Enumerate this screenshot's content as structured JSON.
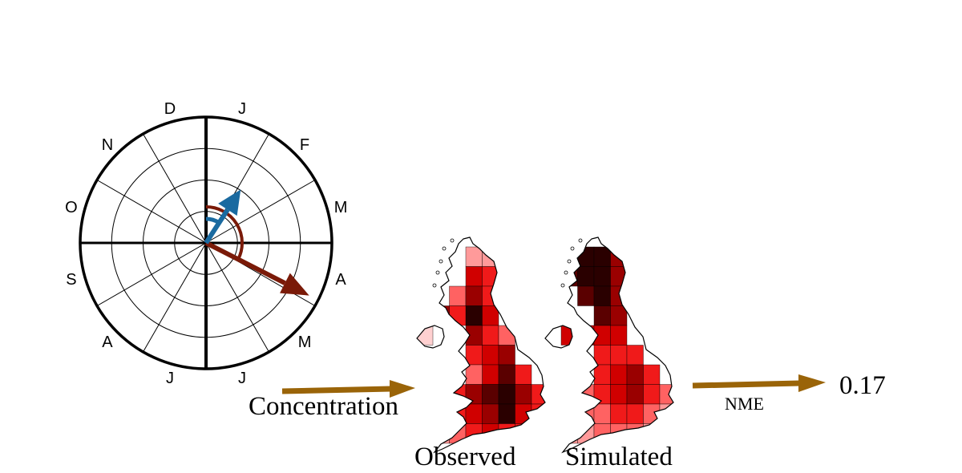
{
  "polar": {
    "months": [
      "J",
      "F",
      "M",
      "A",
      "M",
      "J",
      "J",
      "A",
      "S",
      "O",
      "N",
      "D"
    ],
    "colors": {
      "observed_arrow": "#1a6aa0",
      "simulated_arrow": "#7a1a08",
      "ring_line": "#000000"
    },
    "observed_vector": {
      "phase_month": 1.1,
      "magnitude": 0.55
    },
    "simulated_vector": {
      "phase_month": 3.9,
      "magnitude": 1.0
    }
  },
  "flow": {
    "concentration_label": "Concentration",
    "observed_label": "Observed",
    "simulated_label": "Simulated",
    "metric_label": "NME",
    "metric_value": "0.17",
    "arrow_color": "#9a6408"
  },
  "maps": {
    "palette": [
      "#ffd0d0",
      "#ff9a9a",
      "#ff6262",
      "#f01a1a",
      "#d00000",
      "#9a0000",
      "#5a0000",
      "#2a0000"
    ],
    "observed_cells": [
      [
        2,
        0,
        1
      ],
      [
        3,
        0,
        1
      ],
      [
        2,
        1,
        4
      ],
      [
        3,
        1,
        3
      ],
      [
        4,
        1,
        0
      ],
      [
        1,
        2,
        2
      ],
      [
        2,
        2,
        5
      ],
      [
        3,
        2,
        3
      ],
      [
        2,
        3,
        7
      ],
      [
        3,
        3,
        4
      ],
      [
        0,
        3,
        5
      ],
      [
        1,
        3,
        3
      ],
      [
        2,
        4,
        5
      ],
      [
        3,
        4,
        3
      ],
      [
        4,
        4,
        2
      ],
      [
        -1,
        4,
        0
      ],
      [
        3,
        5,
        4
      ],
      [
        4,
        5,
        5
      ],
      [
        2,
        5,
        3
      ],
      [
        3,
        6,
        4
      ],
      [
        4,
        6,
        6
      ],
      [
        5,
        6,
        3
      ],
      [
        2,
        6,
        2
      ],
      [
        1,
        7,
        3
      ],
      [
        2,
        7,
        5
      ],
      [
        3,
        7,
        6
      ],
      [
        4,
        7,
        7
      ],
      [
        5,
        7,
        5
      ],
      [
        6,
        7,
        3
      ],
      [
        1,
        8,
        3
      ],
      [
        2,
        8,
        4
      ],
      [
        3,
        8,
        5
      ],
      [
        4,
        8,
        7
      ],
      [
        5,
        8,
        4
      ],
      [
        6,
        8,
        3
      ],
      [
        0,
        9,
        1
      ],
      [
        1,
        9,
        2
      ],
      [
        2,
        9,
        3
      ],
      [
        3,
        9,
        4
      ],
      [
        4,
        9,
        3
      ],
      [
        5,
        9,
        3
      ],
      [
        -1,
        9,
        0
      ]
    ],
    "simulated_cells": [
      [
        1,
        0,
        7
      ],
      [
        2,
        0,
        7
      ],
      [
        3,
        0,
        5
      ],
      [
        0,
        1,
        6
      ],
      [
        1,
        1,
        7
      ],
      [
        2,
        1,
        7
      ],
      [
        3,
        1,
        5
      ],
      [
        1,
        2,
        6
      ],
      [
        2,
        2,
        7
      ],
      [
        3,
        2,
        5
      ],
      [
        2,
        3,
        6
      ],
      [
        3,
        3,
        5
      ],
      [
        0,
        4,
        4
      ],
      [
        1,
        4,
        4
      ],
      [
        2,
        4,
        4
      ],
      [
        3,
        4,
        4
      ],
      [
        2,
        5,
        3
      ],
      [
        3,
        5,
        3
      ],
      [
        4,
        5,
        3
      ],
      [
        2,
        6,
        3
      ],
      [
        3,
        6,
        4
      ],
      [
        4,
        6,
        5
      ],
      [
        5,
        6,
        3
      ],
      [
        1,
        7,
        2
      ],
      [
        2,
        7,
        3
      ],
      [
        3,
        7,
        4
      ],
      [
        4,
        7,
        5
      ],
      [
        5,
        7,
        3
      ],
      [
        6,
        7,
        2
      ],
      [
        0,
        8,
        1
      ],
      [
        1,
        8,
        2
      ],
      [
        2,
        8,
        2
      ],
      [
        3,
        8,
        3
      ],
      [
        4,
        8,
        3
      ],
      [
        5,
        8,
        2
      ],
      [
        6,
        8,
        1
      ],
      [
        0,
        9,
        1
      ],
      [
        1,
        9,
        1
      ],
      [
        2,
        9,
        2
      ],
      [
        3,
        9,
        2
      ],
      [
        4,
        9,
        2
      ],
      [
        5,
        9,
        1
      ]
    ]
  }
}
